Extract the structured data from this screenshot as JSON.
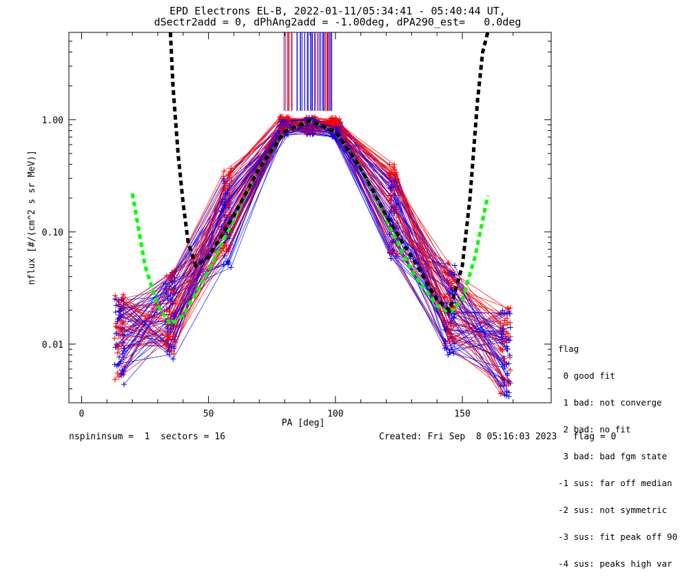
{
  "chart_data": {
    "type": "line",
    "title": "EPD Electrons EL-B, 2022-01-11/05:34:41 - 05:40:44 UT,",
    "subtitle": "dSectr2add = 0, dPhAng2add = -1.00deg, dPA290_est=   0.0deg",
    "xlabel": "PA [deg]",
    "ylabel": "nflux [#/(cm^2 s sr MeV)]",
    "xlim": [
      -5,
      185
    ],
    "ylim": [
      0.003,
      6
    ],
    "yscale": "log",
    "x_ticks": [
      0,
      50,
      100,
      150
    ],
    "x_tick_labels": [
      "0",
      "50",
      "100",
      "150"
    ],
    "y_ticks": [
      0.01,
      0.1,
      1.0
    ],
    "y_tick_labels": [
      "0.01",
      "0.10",
      "1.00"
    ],
    "series": [
      {
        "color": "#0000ff",
        "style": "thin line with + markers",
        "x": [
          15,
          35,
          57,
          80,
          90,
          100,
          123,
          145,
          167
        ],
        "y": [
          0.011,
          0.018,
          0.12,
          0.85,
          0.88,
          0.82,
          0.14,
          0.02,
          0.008
        ]
      },
      {
        "color": "#ff0000",
        "style": "thin line with + markers",
        "x": [
          15,
          35,
          57,
          80,
          90,
          100,
          123,
          145,
          167
        ],
        "y": [
          0.012,
          0.02,
          0.15,
          0.9,
          0.9,
          0.88,
          0.16,
          0.022,
          0.009
        ]
      },
      {
        "color": "#00ff00",
        "style": "thick dashed fit",
        "x": [
          20,
          25,
          30,
          35,
          40,
          50,
          60,
          70,
          80,
          90,
          100,
          110,
          120,
          130,
          140,
          145,
          150,
          155,
          160
        ],
        "y": [
          0.22,
          0.05,
          0.022,
          0.015,
          0.018,
          0.045,
          0.13,
          0.37,
          0.78,
          0.98,
          0.78,
          0.37,
          0.13,
          0.045,
          0.022,
          0.019,
          0.025,
          0.06,
          0.21
        ]
      },
      {
        "color": "#000000",
        "style": "thick dashed fit",
        "x": [
          35,
          36,
          38,
          40,
          42,
          45,
          50,
          60,
          70,
          80,
          90,
          100,
          110,
          120,
          130,
          140,
          145,
          150,
          153,
          156,
          158,
          160
        ],
        "y": [
          6,
          2,
          0.5,
          0.18,
          0.08,
          0.05,
          0.06,
          0.14,
          0.37,
          0.78,
          0.98,
          0.78,
          0.37,
          0.14,
          0.06,
          0.025,
          0.02,
          0.05,
          0.2,
          1.5,
          4,
          6
        ]
      }
    ]
  },
  "legend": {
    "title": "flag",
    "entries": [
      " 0 good fit",
      " 1 bad: not converge",
      " 2 bad: no fit",
      " 3 bad: bad fgm state",
      "-1 sus: far off median",
      "-2 sus: not symmetric",
      "-3 sus: fit peak off 90",
      "-4 sus: peaks high var"
    ]
  },
  "footer": {
    "left": "nspininsum =  1  sectors = 16",
    "right": "Created: Fri Sep  8 05:16:03 2023   flag = 0"
  }
}
